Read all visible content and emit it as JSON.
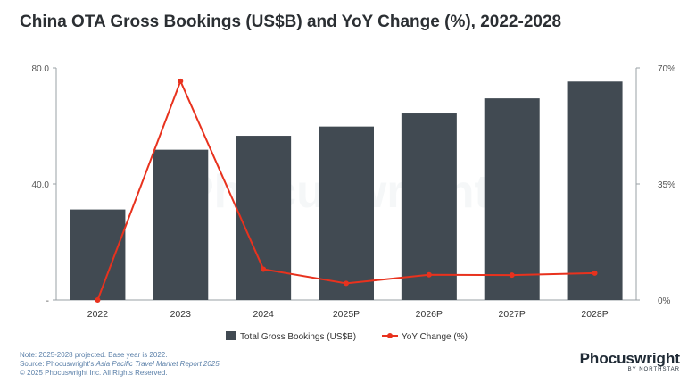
{
  "title": "China OTA Gross Bookings (US$B) and YoY Change (%), 2022-2028",
  "chart_data": {
    "type": "bar",
    "categories": [
      "2022",
      "2023",
      "2024",
      "2025P",
      "2026P",
      "2027P",
      "2028P"
    ],
    "series": [
      {
        "name": "Total Gross Bookings (US$B)",
        "type": "bar",
        "axis": "left",
        "color": "#414a52",
        "values": [
          31.2,
          51.8,
          56.6,
          59.8,
          64.3,
          69.5,
          75.3
        ]
      },
      {
        "name": "YoY Change (%)",
        "type": "line",
        "axis": "right",
        "color": "#e8321e",
        "values": [
          0,
          66,
          9.3,
          5.0,
          7.6,
          7.5,
          8.1
        ]
      }
    ],
    "y_left": {
      "min": 0,
      "max": 80,
      "ticks": [
        {
          "value": 0,
          "label": "-"
        },
        {
          "value": 40,
          "label": "40.0"
        },
        {
          "value": 80,
          "label": "80.0"
        }
      ]
    },
    "y_right": {
      "min": 0,
      "max": 70,
      "ticks": [
        {
          "value": 0,
          "label": "0%"
        },
        {
          "value": 35,
          "label": "35%"
        },
        {
          "value": 70,
          "label": "70%"
        }
      ]
    },
    "legend": {
      "position": "bottom"
    }
  },
  "notes": {
    "line1": "Note: 2025-2028 projected. Base year is 2022.",
    "line2_prefix": "Source: Phocuswright's ",
    "line2_italic": "Asia Pacific Travel Market Report 2025",
    "line3": "© 2025 Phocuswright Inc. All Rights Reserved."
  },
  "logo": {
    "name": "Phocuswright",
    "sub": "BY NORTHSTAR"
  },
  "colors": {
    "bar": "#414a52",
    "line": "#e8321e",
    "axis": "#9aa0a6"
  }
}
